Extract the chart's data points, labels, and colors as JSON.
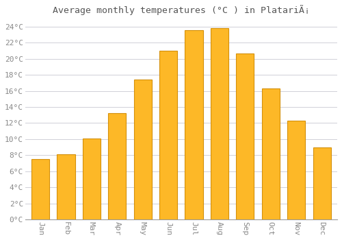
{
  "title": "Average monthly temperatures (°C ) in PlatariÃ¡",
  "months": [
    "Jan",
    "Feb",
    "Mar",
    "Apr",
    "May",
    "Jun",
    "Jul",
    "Aug",
    "Sep",
    "Oct",
    "Nov",
    "Dec"
  ],
  "values": [
    7.5,
    8.1,
    10.1,
    13.2,
    17.4,
    21.0,
    23.6,
    23.8,
    20.7,
    16.3,
    12.3,
    9.0
  ],
  "bar_color_top": "#FDB827",
  "bar_color_bottom": "#F5A800",
  "bar_edge_color": "#D4900A",
  "ylim": [
    0,
    25
  ],
  "ytick_step": 2,
  "background_color": "#ffffff",
  "grid_color": "#d0d0d8",
  "title_fontsize": 9.5,
  "tick_label_fontsize": 8,
  "tick_label_color": "#888888",
  "title_color": "#555555",
  "bar_width": 0.7
}
